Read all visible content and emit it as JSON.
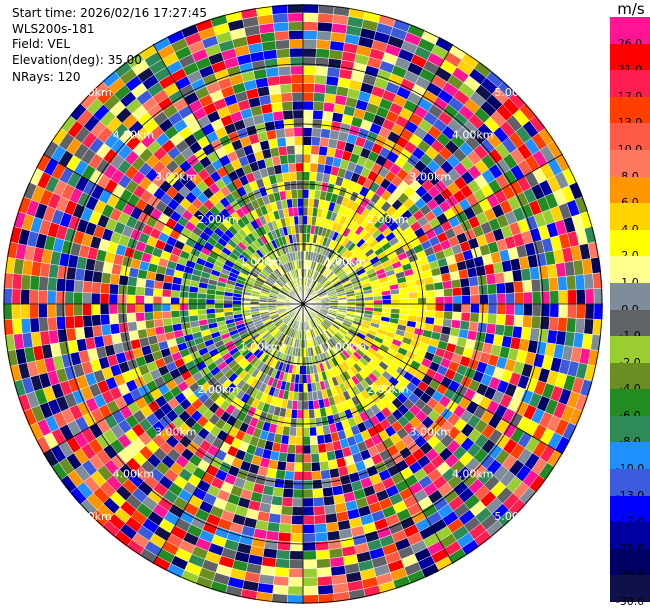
{
  "header": {
    "start_time": "Start time: 2026/02/16 17:27:45",
    "instrument": "WLS200s-181",
    "field": "Field: VEL",
    "elevation": "Elevation(deg): 35.00",
    "nrays": "NRays: 120"
  },
  "colorbar": {
    "unit": "m/s",
    "bins": [
      {
        "label": "26.0",
        "color": "#ff1493"
      },
      {
        "label": "21.0",
        "color": "#ff0000"
      },
      {
        "label": "17.0",
        "color": "#ff1e50"
      },
      {
        "label": "13.0",
        "color": "#ff3e00"
      },
      {
        "label": "10.0",
        "color": "#ff5a46"
      },
      {
        "label": "8.0",
        "color": "#ff7860"
      },
      {
        "label": "6.0",
        "color": "#ff9600"
      },
      {
        "label": "4.0",
        "color": "#ffd200"
      },
      {
        "label": "2.0",
        "color": "#ffff00"
      },
      {
        "label": "1.0",
        "color": "#ffff8c"
      },
      {
        "label": "0.0",
        "color": "#7f8c99"
      },
      {
        "label": "-1.0",
        "color": "#5f6368"
      },
      {
        "label": "-2.0",
        "color": "#9acd32"
      },
      {
        "label": "-4.0",
        "color": "#6b8e23"
      },
      {
        "label": "-6.0",
        "color": "#228b22"
      },
      {
        "label": "-8.0",
        "color": "#2e8b57"
      },
      {
        "label": "-10.0",
        "color": "#1e90ff"
      },
      {
        "label": "-13.0",
        "color": "#3c5adc"
      },
      {
        "label": "-17.0",
        "color": "#0000ff"
      },
      {
        "label": "-21.0",
        "color": "#0000a0"
      },
      {
        "label": "-26.0",
        "color": "#000064"
      },
      {
        "label": "-30.0",
        "color": "#10104a"
      }
    ]
  },
  "chart_data": {
    "type": "heatmap",
    "subtype": "ppi-polar",
    "field": "VEL",
    "units": "m/s",
    "elevation_deg": 35.0,
    "n_rays": 120,
    "range_rings_km": [
      1.0,
      2.0,
      3.0,
      4.0,
      5.0
    ],
    "ring_label": "km",
    "max_range_km": 5.0,
    "spoke_angles_deg": [
      0,
      30,
      60,
      90,
      120,
      150,
      180,
      210,
      240,
      270,
      300,
      330
    ],
    "velocity_regions": [
      {
        "range_km": [
          0.0,
          1.0
        ],
        "dominant": "near-zero",
        "values_ms": [
          -2.0,
          0.0,
          1.0,
          2.0
        ]
      },
      {
        "range_km": [
          1.0,
          2.0
        ],
        "dominant": "mixed small",
        "values_ms": [
          -4.0,
          -2.0,
          0.0,
          2.0,
          4.0
        ]
      },
      {
        "range_km": [
          2.0,
          5.0
        ],
        "dominant": "noise",
        "values_ms": [
          26.0,
          21.0,
          -17.0,
          -21.0,
          -26.0,
          6.0,
          -8.0
        ]
      }
    ]
  }
}
